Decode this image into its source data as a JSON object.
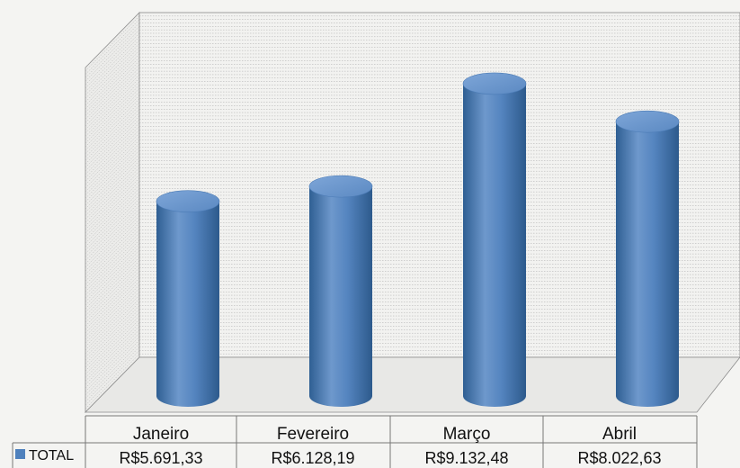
{
  "chart_data": {
    "type": "bar",
    "style": "3d-cylinder",
    "categories": [
      "Janeiro",
      "Fevereiro",
      "Março",
      "Abril"
    ],
    "series": [
      {
        "name": "TOTAL",
        "values": [
          5691.33,
          6128.19,
          9132.48,
          8022.63
        ],
        "value_labels": [
          "R$5.691,33",
          "R$6.128,19",
          "R$9.132,48",
          "R$8.022,63"
        ]
      }
    ],
    "ylim": [
      0,
      10000
    ],
    "grid": true,
    "legend": "data-table-left",
    "colors": {
      "bar": "#4f81bd",
      "bar_dark": "#2f5f93",
      "bar_light": "#7fa6d6",
      "grid": "#9a9a9a"
    }
  }
}
